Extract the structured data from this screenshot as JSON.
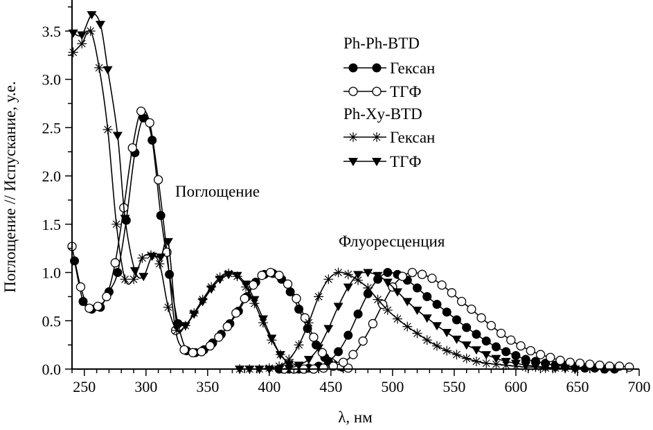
{
  "chart_data": {
    "type": "line",
    "xlabel": "λ, нм",
    "ylabel": "Поглощение // Испускание, у.е.",
    "xlim": [
      240,
      700
    ],
    "ylim": [
      0,
      3.8
    ],
    "xticks": [
      250,
      300,
      350,
      400,
      450,
      500,
      550,
      600,
      650,
      700
    ],
    "xtick_labels": [
      "250",
      "300",
      "350",
      "400",
      "450",
      "500",
      "550",
      "600",
      "650",
      "700"
    ],
    "yticks": [
      0,
      0.5,
      1.0,
      1.5,
      2.0,
      2.5,
      3.0,
      3.5
    ],
    "ytick_labels": [
      "0.0",
      "0.5",
      "1.0",
      "1.5",
      "2.0",
      "2.5",
      "3.0",
      "3.5"
    ],
    "grid": false,
    "legend_position": "top-right",
    "legend_groups": [
      {
        "title": "Ph-Ph-BTD",
        "entries": [
          {
            "label": "Гексан",
            "marker": "filled-circle"
          },
          {
            "label": "ТГФ",
            "marker": "open-circle"
          }
        ]
      },
      {
        "title": "Ph-Xy-BTD",
        "entries": [
          {
            "label": "Гексан",
            "marker": "asterisk"
          },
          {
            "label": "ТГФ",
            "marker": "filled-triangle-down"
          }
        ]
      }
    ],
    "annotations": [
      "Поглощение",
      "Флуоресценция"
    ],
    "series": [
      {
        "name": "Ph-Ph-BTD Гексан",
        "marker": "filled-circle",
        "part": "absorption",
        "x": [
          242,
          249,
          256,
          263,
          270,
          277,
          284,
          291,
          298,
          305,
          312,
          319,
          326,
          333,
          340,
          347,
          354,
          361,
          368,
          375,
          382,
          389,
          396,
          403,
          410,
          417,
          424,
          431,
          438,
          445,
          452,
          459
        ],
        "y": [
          1.12,
          0.7,
          0.62,
          0.64,
          0.8,
          1.0,
          1.54,
          2.24,
          2.6,
          2.37,
          1.59,
          0.98,
          0.47,
          0.19,
          0.17,
          0.2,
          0.27,
          0.36,
          0.47,
          0.6,
          0.75,
          0.9,
          0.98,
          0.99,
          0.93,
          0.8,
          0.62,
          0.42,
          0.25,
          0.12,
          0.05,
          0.02
        ]
      },
      {
        "name": "Ph-Ph-BTD ТГФ",
        "marker": "open-circle",
        "part": "absorption",
        "x": [
          240,
          247,
          254,
          261,
          268,
          275,
          282,
          289,
          296,
          303,
          310,
          317,
          324,
          331,
          338,
          345,
          352,
          359,
          366,
          373,
          380,
          387,
          394,
          401,
          408,
          415,
          422,
          429,
          436,
          443,
          450,
          457,
          464
        ],
        "y": [
          1.27,
          0.85,
          0.63,
          0.65,
          0.75,
          1.1,
          1.67,
          2.29,
          2.67,
          2.55,
          1.96,
          1.21,
          0.4,
          0.2,
          0.17,
          0.18,
          0.24,
          0.33,
          0.44,
          0.58,
          0.73,
          0.87,
          0.97,
          1.0,
          0.97,
          0.88,
          0.73,
          0.53,
          0.33,
          0.17,
          0.07,
          0.03,
          0.01
        ]
      },
      {
        "name": "Ph-Xy-BTD Гексан",
        "marker": "asterisk",
        "part": "absorption",
        "x": [
          241,
          248,
          255,
          262,
          269,
          276,
          283,
          290,
          297,
          304,
          311,
          318,
          325,
          332,
          339,
          346,
          353,
          360,
          367,
          374,
          381,
          388,
          395,
          402,
          409,
          416,
          423
        ],
        "y": [
          3.28,
          3.37,
          3.5,
          3.12,
          2.48,
          1.5,
          0.93,
          0.93,
          1.15,
          1.18,
          1.09,
          0.64,
          0.4,
          0.45,
          0.58,
          0.72,
          0.85,
          0.95,
          0.99,
          0.96,
          0.85,
          0.68,
          0.48,
          0.3,
          0.15,
          0.06,
          0.02
        ]
      },
      {
        "name": "Ph-Xy-BTD ТГФ",
        "marker": "filled-triangle-down",
        "part": "absorption",
        "x": [
          241,
          248,
          256,
          263,
          269,
          277,
          283,
          291,
          298,
          305,
          312,
          318,
          325,
          332,
          339,
          346,
          353,
          360,
          367,
          374,
          381,
          388,
          395,
          402,
          409,
          416
        ],
        "y": [
          3.48,
          3.46,
          3.67,
          3.57,
          3.1,
          2.42,
          1.56,
          1.02,
          0.96,
          1.17,
          1.16,
          1.32,
          0.45,
          0.45,
          0.57,
          0.7,
          0.83,
          0.93,
          0.98,
          0.97,
          0.88,
          0.72,
          0.52,
          0.32,
          0.15,
          0.05
        ]
      },
      {
        "name": "Ph-Ph-BTD Гексан",
        "marker": "filled-circle",
        "part": "fluorescence",
        "x": [
          408,
          416,
          424,
          432,
          440,
          448,
          456,
          464,
          472,
          480,
          488,
          496,
          504,
          512,
          520,
          528,
          536,
          544,
          552,
          560,
          568,
          576,
          584,
          592,
          600,
          608,
          616,
          624,
          632,
          640,
          648,
          656,
          664,
          672,
          680
        ],
        "y": [
          0,
          0,
          0,
          0.01,
          0.03,
          0.08,
          0.18,
          0.35,
          0.57,
          0.78,
          0.93,
          1.0,
          0.98,
          0.92,
          0.84,
          0.75,
          0.67,
          0.59,
          0.51,
          0.43,
          0.36,
          0.29,
          0.23,
          0.18,
          0.14,
          0.1,
          0.08,
          0.06,
          0.04,
          0.03,
          0.02,
          0.01,
          0.01,
          0,
          0
        ]
      },
      {
        "name": "Ph-Ph-BTD ТГФ",
        "marker": "open-circle",
        "part": "fluorescence",
        "x": [
          412,
          420,
          428,
          436,
          444,
          452,
          460,
          468,
          476,
          484,
          492,
          500,
          508,
          516,
          524,
          532,
          540,
          548,
          556,
          564,
          572,
          580,
          588,
          596,
          604,
          612,
          620,
          628,
          636,
          644,
          652,
          660,
          668,
          676,
          684,
          692
        ],
        "y": [
          0,
          0,
          0,
          0,
          0.01,
          0.03,
          0.07,
          0.15,
          0.29,
          0.47,
          0.67,
          0.85,
          0.96,
          1.0,
          0.98,
          0.94,
          0.87,
          0.79,
          0.7,
          0.62,
          0.53,
          0.45,
          0.37,
          0.3,
          0.24,
          0.19,
          0.15,
          0.12,
          0.09,
          0.07,
          0.06,
          0.05,
          0.04,
          0.03,
          0.03,
          0.02
        ]
      },
      {
        "name": "Ph-Xy-BTD Гексан",
        "marker": "asterisk",
        "part": "fluorescence",
        "x": [
          376,
          384,
          392,
          400,
          408,
          416,
          424,
          432,
          440,
          448,
          456,
          464,
          472,
          480,
          488,
          496,
          504,
          512,
          520,
          528,
          536,
          544,
          552,
          560,
          568,
          576,
          584,
          592,
          600,
          608,
          616,
          624,
          632,
          640,
          648
        ],
        "y": [
          0,
          0,
          0,
          0.01,
          0.03,
          0.1,
          0.25,
          0.48,
          0.75,
          0.93,
          1.0,
          0.98,
          0.92,
          0.84,
          0.72,
          0.61,
          0.52,
          0.44,
          0.37,
          0.3,
          0.24,
          0.19,
          0.15,
          0.11,
          0.08,
          0.06,
          0.05,
          0.04,
          0.03,
          0.02,
          0.02,
          0.01,
          0.01,
          0.01,
          0
        ]
      },
      {
        "name": "Ph-Xy-BTD ТГФ",
        "marker": "filled-triangle-down",
        "part": "fluorescence",
        "x": [
          376,
          384,
          392,
          400,
          408,
          416,
          424,
          432,
          440,
          448,
          456,
          464,
          472,
          480,
          488,
          496,
          504,
          512,
          520,
          528,
          536,
          544,
          552,
          560,
          568,
          576,
          584,
          592,
          600,
          608,
          616,
          624,
          632,
          640,
          648
        ],
        "y": [
          0,
          0,
          0,
          0,
          0,
          0.01,
          0.04,
          0.1,
          0.22,
          0.42,
          0.65,
          0.85,
          0.98,
          1.0,
          0.97,
          0.9,
          0.8,
          0.7,
          0.61,
          0.53,
          0.45,
          0.38,
          0.31,
          0.25,
          0.2,
          0.15,
          0.11,
          0.08,
          0.06,
          0.04,
          0.03,
          0.02,
          0.01,
          0.01,
          0
        ]
      }
    ]
  }
}
